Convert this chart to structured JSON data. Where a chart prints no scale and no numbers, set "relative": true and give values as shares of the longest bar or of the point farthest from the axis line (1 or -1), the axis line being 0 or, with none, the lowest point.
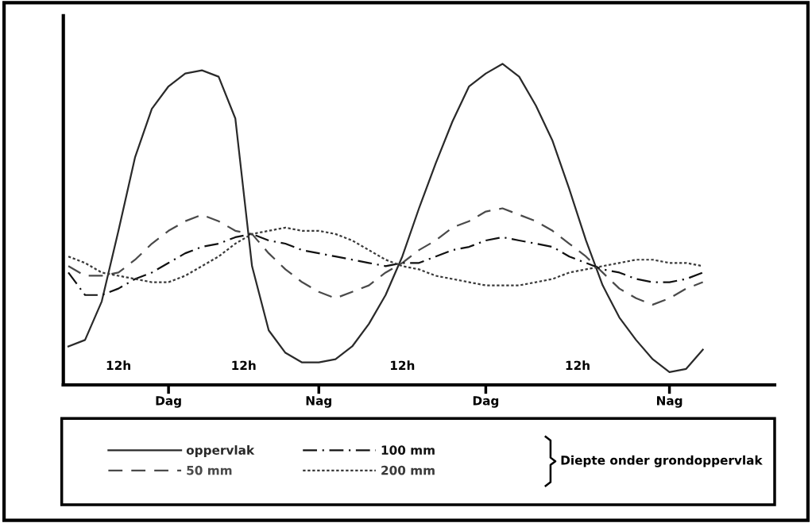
{
  "chart_data": {
    "type": "line",
    "relative": true,
    "legend_title": "Diepte onder grondoppervlak",
    "categories": [
      null,
      null,
      null,
      null,
      null,
      null,
      "Dag",
      null,
      null,
      null,
      null,
      null,
      null,
      null,
      null,
      "Nag",
      null,
      null,
      null,
      null,
      null,
      null,
      null,
      null,
      null,
      "Dag",
      null,
      null,
      null,
      null,
      null,
      null,
      null,
      null,
      null,
      null,
      "Nag",
      null,
      null,
      null,
      null,
      null,
      null
    ],
    "annotations": [
      "12h",
      "12h",
      "12h",
      "12h"
    ],
    "legend": "bottom",
    "series": [
      {
        "name": "oppervlak",
        "color": "#2a2a2a",
        "line_style": "solid",
        "values": [
          0.12,
          0.14,
          0.26,
          0.48,
          0.71,
          0.86,
          0.93,
          0.97,
          0.98,
          0.96,
          0.83,
          0.37,
          0.17,
          0.1,
          0.07,
          0.07,
          0.08,
          0.12,
          0.19,
          0.28,
          0.4,
          0.55,
          0.69,
          0.82,
          0.93,
          0.97,
          1.0,
          0.96,
          0.87,
          0.76,
          0.61,
          0.45,
          0.31,
          0.21,
          0.14,
          0.08,
          0.04,
          0.05,
          0.11,
          null,
          null,
          null,
          null
        ]
      },
      {
        "name": "50 mm",
        "color": "#4a4a4a",
        "line_style": "dashed",
        "values": [
          0.37,
          0.34,
          0.34,
          0.35,
          0.39,
          0.44,
          0.48,
          0.51,
          0.53,
          0.51,
          0.48,
          0.47,
          0.41,
          0.36,
          0.32,
          0.29,
          0.27,
          0.29,
          0.31,
          0.35,
          0.38,
          0.42,
          0.45,
          0.49,
          0.51,
          0.54,
          0.55,
          0.53,
          0.51,
          0.48,
          0.44,
          0.4,
          0.35,
          0.3,
          0.27,
          0.25,
          0.27,
          0.3,
          0.32,
          null,
          null,
          null,
          null
        ]
      },
      {
        "name": "100 mm",
        "color": "#111111",
        "line_style": "dashdot",
        "values": [
          0.35,
          0.28,
          0.28,
          0.3,
          0.33,
          0.35,
          0.38,
          0.41,
          0.43,
          0.44,
          0.46,
          0.47,
          0.45,
          0.44,
          0.42,
          0.41,
          0.4,
          0.39,
          0.38,
          0.37,
          0.38,
          0.38,
          0.4,
          0.42,
          0.43,
          0.45,
          0.46,
          0.45,
          0.44,
          0.43,
          0.4,
          0.38,
          0.36,
          0.35,
          0.33,
          0.32,
          0.32,
          0.33,
          0.35,
          null,
          null,
          null,
          null
        ]
      },
      {
        "name": "200 mm",
        "color": "#3a3a3a",
        "line_style": "dotted",
        "values": [
          0.4,
          0.38,
          0.35,
          0.34,
          0.33,
          0.32,
          0.32,
          0.34,
          0.37,
          0.4,
          0.44,
          0.47,
          0.48,
          0.49,
          0.48,
          0.48,
          0.47,
          0.45,
          0.42,
          0.39,
          0.37,
          0.36,
          0.34,
          0.33,
          0.32,
          0.31,
          0.31,
          0.31,
          0.32,
          0.33,
          0.35,
          0.36,
          0.37,
          0.38,
          0.39,
          0.39,
          0.38,
          0.38,
          0.37,
          null,
          null,
          null,
          null
        ]
      }
    ]
  }
}
